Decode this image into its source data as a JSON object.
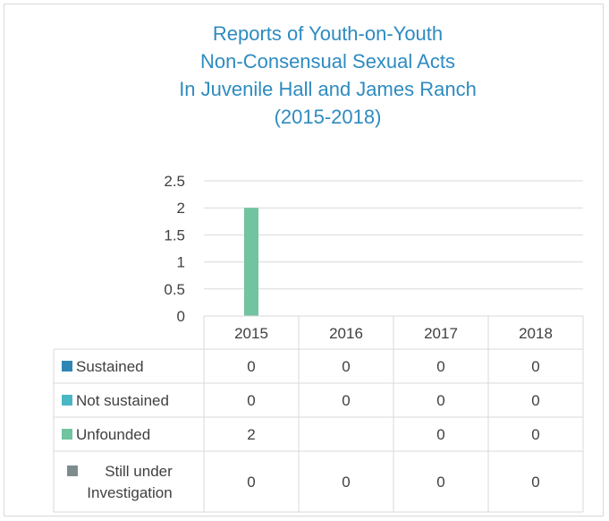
{
  "chart_data": {
    "type": "bar",
    "title_lines": [
      "Reports of Youth-on-Youth",
      "Non-Consensual Sexual Acts",
      "In Juvenile Hall and James Ranch",
      "(2015-2018)"
    ],
    "categories": [
      "2015",
      "2016",
      "2017",
      "2018"
    ],
    "y_ticks": [
      "0",
      "0.5",
      "1",
      "1.5",
      "2",
      "2.5"
    ],
    "ylim": [
      0,
      2.5
    ],
    "grid": true,
    "legend_placement": "data table",
    "series": [
      {
        "name": "Sustained",
        "color": "#2e86b5",
        "values": [
          0,
          0,
          0,
          0
        ],
        "labels": [
          "0",
          "0",
          "0",
          "0"
        ]
      },
      {
        "name": "Not sustained",
        "color": "#4bb6c4",
        "values": [
          0,
          0,
          0,
          0
        ],
        "labels": [
          "0",
          "0",
          "0",
          "0"
        ]
      },
      {
        "name": "Unfounded",
        "color": "#72c3a0",
        "values": [
          2,
          null,
          0,
          0
        ],
        "labels": [
          "2",
          "",
          "0",
          "0"
        ]
      },
      {
        "name": "Still under Investigation",
        "name_lines": [
          "Still under",
          "Investigation"
        ],
        "color": "#7f8c8d",
        "values": [
          0,
          0,
          0,
          0
        ],
        "labels": [
          "0",
          "0",
          "0",
          "0"
        ]
      }
    ]
  }
}
